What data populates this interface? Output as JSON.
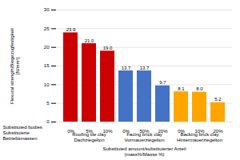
{
  "chart_data": {
    "type": "bar",
    "categories": [
      "0%",
      "5%",
      "10%",
      "0%",
      "50%",
      "20%",
      "0%",
      "10%",
      "20%"
    ],
    "values": [
      23.9,
      21.0,
      19.0,
      13.7,
      13.7,
      9.7,
      8.1,
      8.0,
      5.2
    ],
    "value_labels": [
      "23.9",
      "21.0",
      "19.0",
      "13.7",
      "13.7",
      "9.7",
      "8.1",
      "8.0",
      "5.2"
    ],
    "colors": [
      "#cc0000",
      "#cc0000",
      "#cc0000",
      "#4472c4",
      "#4472c4",
      "#4472c4",
      "#ffa500",
      "#ffa500",
      "#ffa500"
    ],
    "groups": [
      "Roofing tile clay\nDachziegelton",
      "Roofing tile clay\nDachziegelton",
      "Roofing tile clay\nDachziegelton",
      "Facing brick clay\nVormauerziegelton",
      "Facing brick clay\nVormauerziegelton",
      "Facing brick clay\nVormauerziegelton",
      "Backing brick clay\nHintermauerziegelton",
      "Backing brick clay\nHintermauerziegelton",
      "Backing brick clay\nHintermauerziegelton"
    ],
    "ylabel": "Flexural strength/Biegezugfestigkeit\n[N/mm²]",
    "xlabel": "Substituted amount/substituierter Anteil\n(mass%/Masse %)",
    "annotations": [
      "Substituted bodies\nSubstituierte\nBetriebsmassen"
    ],
    "ylim": [
      0,
      30
    ],
    "yticks": [
      0,
      5,
      10,
      15,
      20,
      25,
      30
    ],
    "grid": true,
    "data_labels": true
  }
}
